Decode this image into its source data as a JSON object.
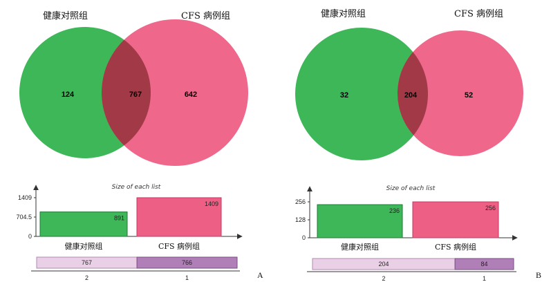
{
  "chart_data": [
    {
      "type": "venn",
      "panel_letter": "A",
      "sets": [
        "健康对照组",
        "CFS 病例组"
      ],
      "colors": [
        "#3db758",
        "#ee5f85"
      ],
      "regions": [
        {
          "sets": [
            "健康对照组"
          ],
          "count": "124"
        },
        {
          "sets": [
            "健康对照组",
            "CFS 病例组"
          ],
          "count": "767"
        },
        {
          "sets": [
            "CFS 病例组"
          ],
          "count": "642"
        }
      ],
      "size_chart": {
        "title": "Size of each list",
        "type": "bar",
        "categories": [
          "健康对照组",
          "CFS 病例组"
        ],
        "values": [
          891,
          1409
        ],
        "ylim": [
          0,
          1409
        ],
        "yticks": [
          "1409",
          "704.5",
          "0"
        ]
      },
      "intersections": {
        "degrees": [
          "2",
          "1"
        ],
        "values": [
          767,
          766
        ]
      }
    },
    {
      "type": "venn",
      "panel_letter": "B",
      "sets": [
        "健康对照组",
        "CFS 病例组"
      ],
      "colors": [
        "#3db758",
        "#ee5f85"
      ],
      "regions": [
        {
          "sets": [
            "健康对照组"
          ],
          "count": "32"
        },
        {
          "sets": [
            "健康对照组",
            "CFS 病例组"
          ],
          "count": "204"
        },
        {
          "sets": [
            "CFS 病例组"
          ],
          "count": "52"
        }
      ],
      "size_chart": {
        "title": "Size of each list",
        "type": "bar",
        "categories": [
          "健康对照组",
          "CFS 病例组"
        ],
        "values": [
          236,
          256
        ],
        "ylim": [
          0,
          256
        ],
        "yticks": [
          "256",
          "128",
          "0"
        ]
      },
      "intersections": {
        "degrees": [
          "2",
          "1"
        ],
        "values": [
          204,
          84
        ]
      }
    }
  ]
}
